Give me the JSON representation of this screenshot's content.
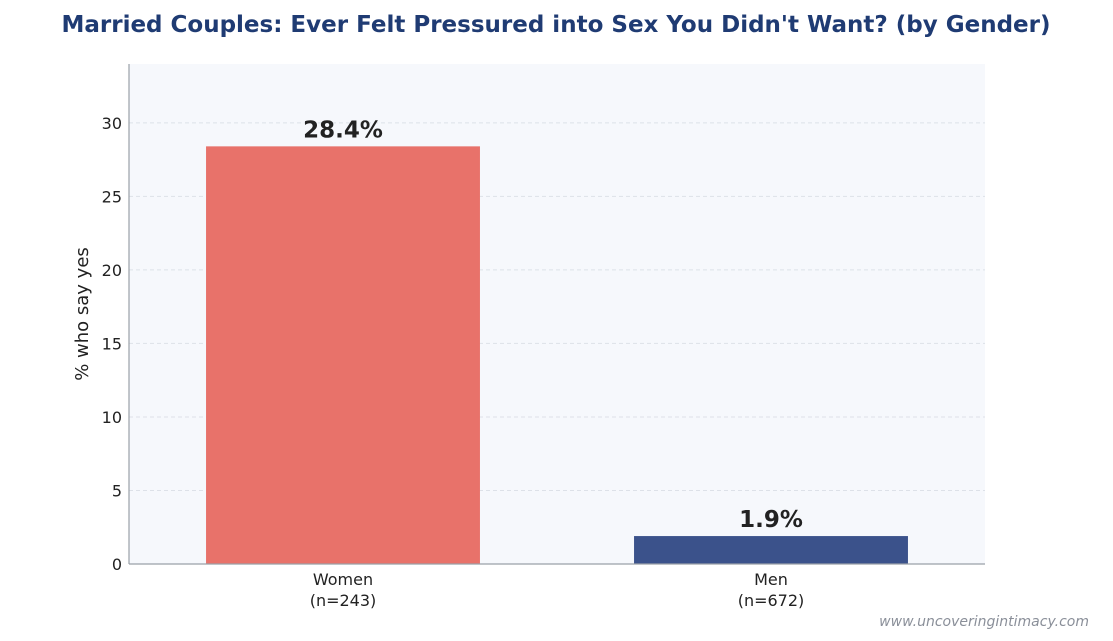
{
  "chart_data": {
    "type": "bar",
    "title": "Married Couples: Ever Felt Pressured into Sex You Didn't Want? (by Gender)",
    "ylabel": "% who say yes",
    "xlabel": "",
    "categories": [
      {
        "name": "Women",
        "sample": "(n=243)"
      },
      {
        "name": "Men",
        "sample": "(n=672)"
      }
    ],
    "values": [
      28.4,
      1.9
    ],
    "value_labels": [
      "28.4%",
      "1.9%"
    ],
    "colors": [
      "#e8726a",
      "#3b528b"
    ],
    "ylim": [
      0,
      34
    ],
    "yticks": [
      {
        "value": 0,
        "label": "0"
      },
      {
        "value": 5,
        "label": "5"
      },
      {
        "value": 10,
        "label": "10"
      },
      {
        "value": 15,
        "label": "15"
      },
      {
        "value": 20,
        "label": "20"
      },
      {
        "value": 25,
        "label": "25"
      },
      {
        "value": 30,
        "label": "30"
      }
    ],
    "grid": true,
    "legend": "none"
  },
  "watermark": "www.uncoveringintimacy.com"
}
